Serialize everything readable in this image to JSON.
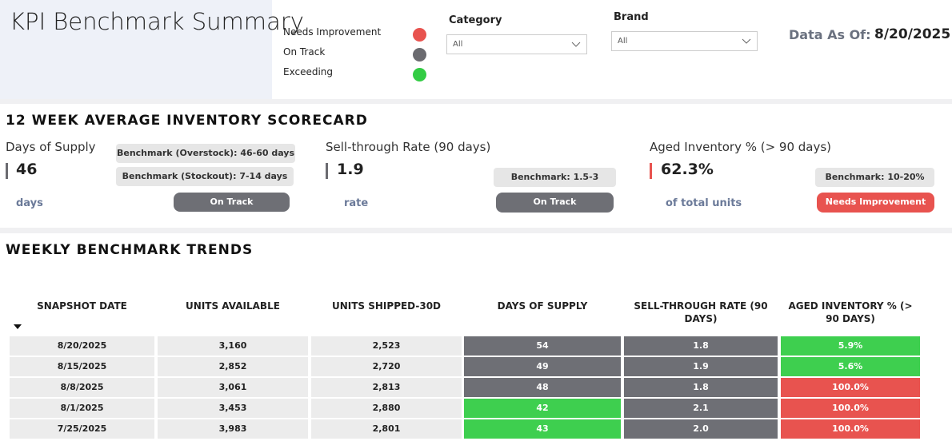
{
  "header": {
    "title": "KPI Benchmark Summary",
    "legend": [
      {
        "label": "Needs Improvement",
        "color": "#e8534f"
      },
      {
        "label": "On Track",
        "color": "#6b6b70"
      },
      {
        "label": "Exceeding",
        "color": "#33cc44"
      }
    ],
    "filters": [
      {
        "label": "Category",
        "value": "All"
      },
      {
        "label": "Brand",
        "value": "All"
      }
    ],
    "date_label": "Data As Of:",
    "date": "8/20/2025"
  },
  "scorecard": {
    "title": "12 WEEK AVERAGE INVENTORY SCORECARD",
    "cards": [
      {
        "name": "Days of Supply",
        "value": "46",
        "unit": "days",
        "accent": "#6b6b70",
        "benchmarks": [
          "Benchmark (Overstock): 46-60 days",
          "Benchmark (Stockout): 7-14 days"
        ],
        "status": "On Track",
        "status_color": "#6e6f75"
      },
      {
        "name": "Sell-through Rate (90 days)",
        "value": "1.9",
        "unit": "rate",
        "accent": "#6b6b70",
        "benchmarks": [
          "Benchmark: 1.5-3"
        ],
        "status": "On Track",
        "status_color": "#6e6f75"
      },
      {
        "name": "Aged Inventory % (> 90 days)",
        "value": "62.3%",
        "unit": "of total units",
        "accent": "#e8534f",
        "benchmarks": [
          "Benchmark: 10-20%"
        ],
        "status": "Needs Improvement",
        "status_color": "#e8534f"
      }
    ]
  },
  "trends": {
    "title": "WEEKLY BENCHMARK TRENDS",
    "columns": [
      "SNAPSHOT DATE",
      "UNITS AVAILABLE",
      "UNITS SHIPPED-30D",
      "DAYS OF SUPPLY",
      "SELL-THROUGH RATE (90 DAYS)",
      "AGED INVENTORY % (> 90 DAYS)"
    ],
    "rows": [
      {
        "cells": [
          "8/20/2025",
          "3,160",
          "2,523",
          "54",
          "1.8",
          "5.9%"
        ],
        "colors": [
          "#6e6f75",
          "#6e6f75",
          "#3ecf4f"
        ]
      },
      {
        "cells": [
          "8/15/2025",
          "2,852",
          "2,720",
          "49",
          "1.9",
          "5.6%"
        ],
        "colors": [
          "#6e6f75",
          "#6e6f75",
          "#3ecf4f"
        ]
      },
      {
        "cells": [
          "8/8/2025",
          "3,061",
          "2,813",
          "48",
          "1.8",
          "100.0%"
        ],
        "colors": [
          "#6e6f75",
          "#6e6f75",
          "#e8534f"
        ]
      },
      {
        "cells": [
          "8/1/2025",
          "3,453",
          "2,880",
          "42",
          "2.1",
          "100.0%"
        ],
        "colors": [
          "#3ecf4f",
          "#6e6f75",
          "#e8534f"
        ]
      },
      {
        "cells": [
          "7/25/2025",
          "3,983",
          "2,801",
          "43",
          "2.0",
          "100.0%"
        ],
        "colors": [
          "#3ecf4f",
          "#6e6f75",
          "#e8534f"
        ]
      }
    ]
  }
}
